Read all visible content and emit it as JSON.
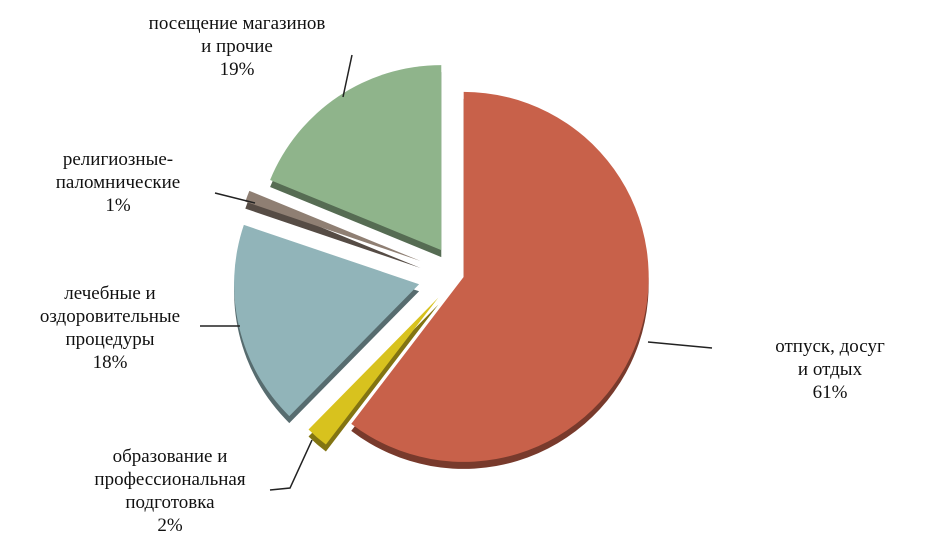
{
  "chart_data": {
    "type": "pie",
    "categories": [
      "отпуск, досуг и отдых",
      "образование и\nпрофессиональная\nподготовка",
      "лечебные и\nоздоровительные\nпроцедуры",
      "религиозные-\nпаломнические",
      "посещение магазинов\nи прочие"
    ],
    "values": [
      61,
      2,
      18,
      1,
      19
    ],
    "value_labels": [
      "61%",
      "2%",
      "18%",
      "1%",
      "19%"
    ],
    "colors": [
      "#c8614a",
      "#d8c21e",
      "#91b4b9",
      "#8f7f73",
      "#8fb48b"
    ]
  }
}
